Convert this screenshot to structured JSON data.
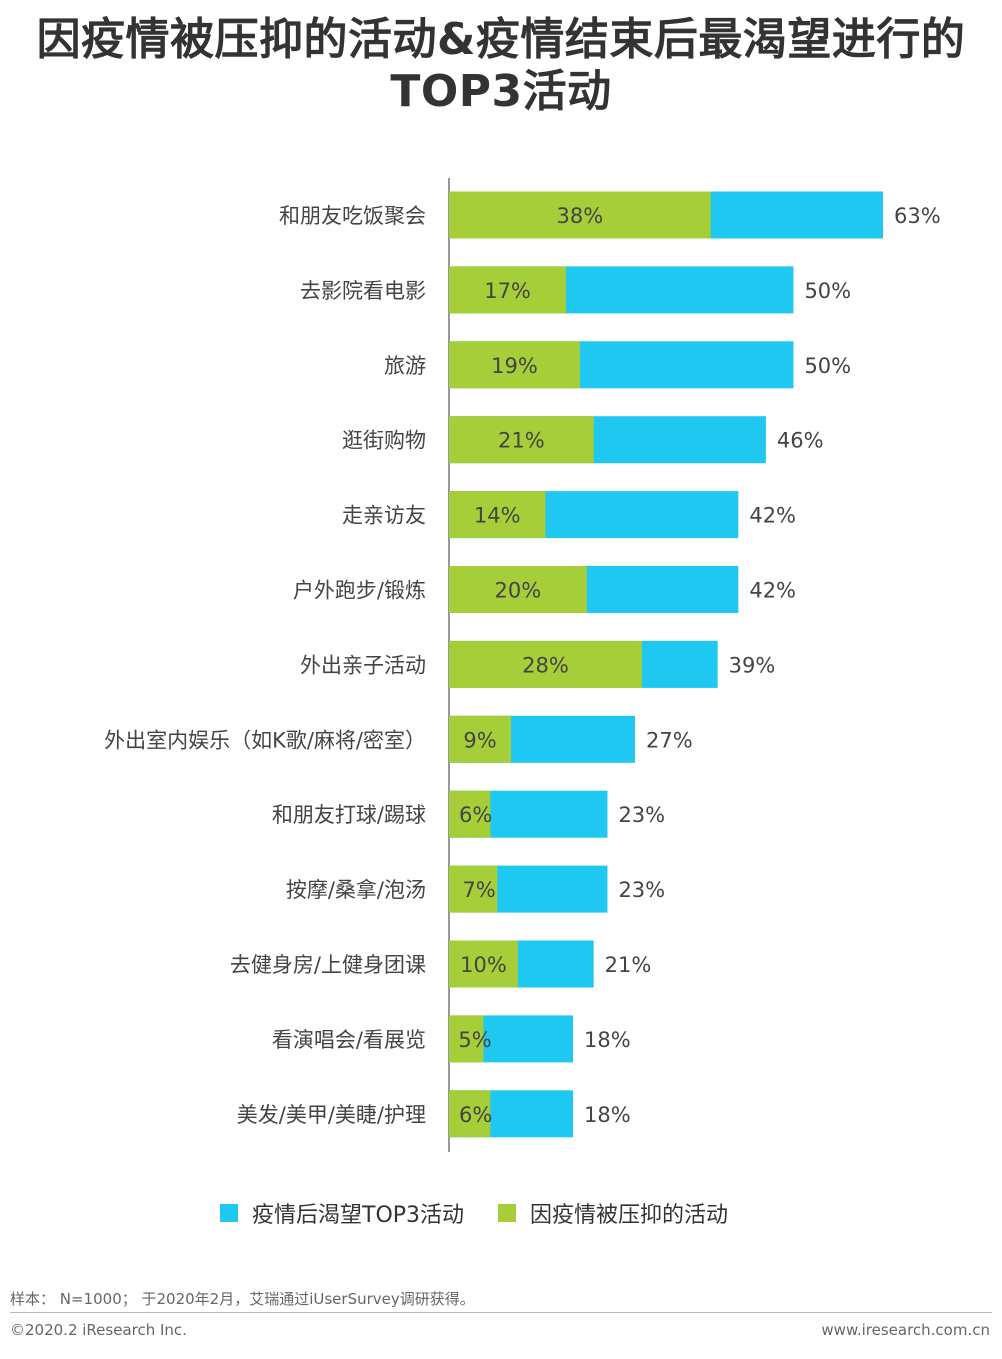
{
  "title_lines": [
    "因疫情被压抑的活动&疫情结束后最渴望进行的",
    "TOP3活动"
  ],
  "chart_data": {
    "type": "bar",
    "orientation": "horizontal",
    "categories": [
      "和朋友吃饭聚会",
      "去影院看电影",
      "旅游",
      "逛街购物",
      "走亲访友",
      "户外跑步/锻炼",
      "外出亲子活动",
      "外出室内娱乐（如K歌/麻将/密室）",
      "和朋友打球/踢球",
      "按摩/桑拿/泡汤",
      "去健身房/上健身团课",
      "看演唱会/看展览",
      "美发/美甲/美睫/护理"
    ],
    "series": [
      {
        "name": "疫情后渴望TOP3活动",
        "values": [
          63,
          50,
          50,
          46,
          42,
          42,
          39,
          27,
          23,
          23,
          21,
          18,
          18
        ],
        "labels": [
          "63%",
          "50%",
          "50%",
          "46%",
          "42%",
          "42%",
          "39%",
          "27%",
          "23%",
          "23%",
          "21%",
          "18%",
          "18%"
        ],
        "color": "#1EC8F0"
      },
      {
        "name": "因疫情被压抑的活动",
        "values": [
          38,
          17,
          19,
          21,
          14,
          20,
          28,
          9,
          6,
          7,
          10,
          5,
          6
        ],
        "labels": [
          "38%",
          "17%",
          "19%",
          "21%",
          "14%",
          "20%",
          "28%",
          "9%",
          "6%",
          "7%",
          "10%",
          "5%",
          "6%"
        ],
        "color": "#A6CE39"
      }
    ],
    "overlay": true,
    "xlim": [
      0,
      63
    ],
    "grid": false,
    "legend_position": "bottom"
  },
  "legend": {
    "items": [
      {
        "label": "疫情后渴望TOP3活动",
        "color": "#1EC8F0"
      },
      {
        "label": "因疫情被压抑的活动",
        "color": "#A6CE39"
      }
    ]
  },
  "note": "样本： N=1000； 于2020年2月，艾瑞通过iUserSurvey调研获得。",
  "footer": {
    "left": "©2020.2 iResearch Inc.",
    "right": "www.iresearch.com.cn"
  }
}
